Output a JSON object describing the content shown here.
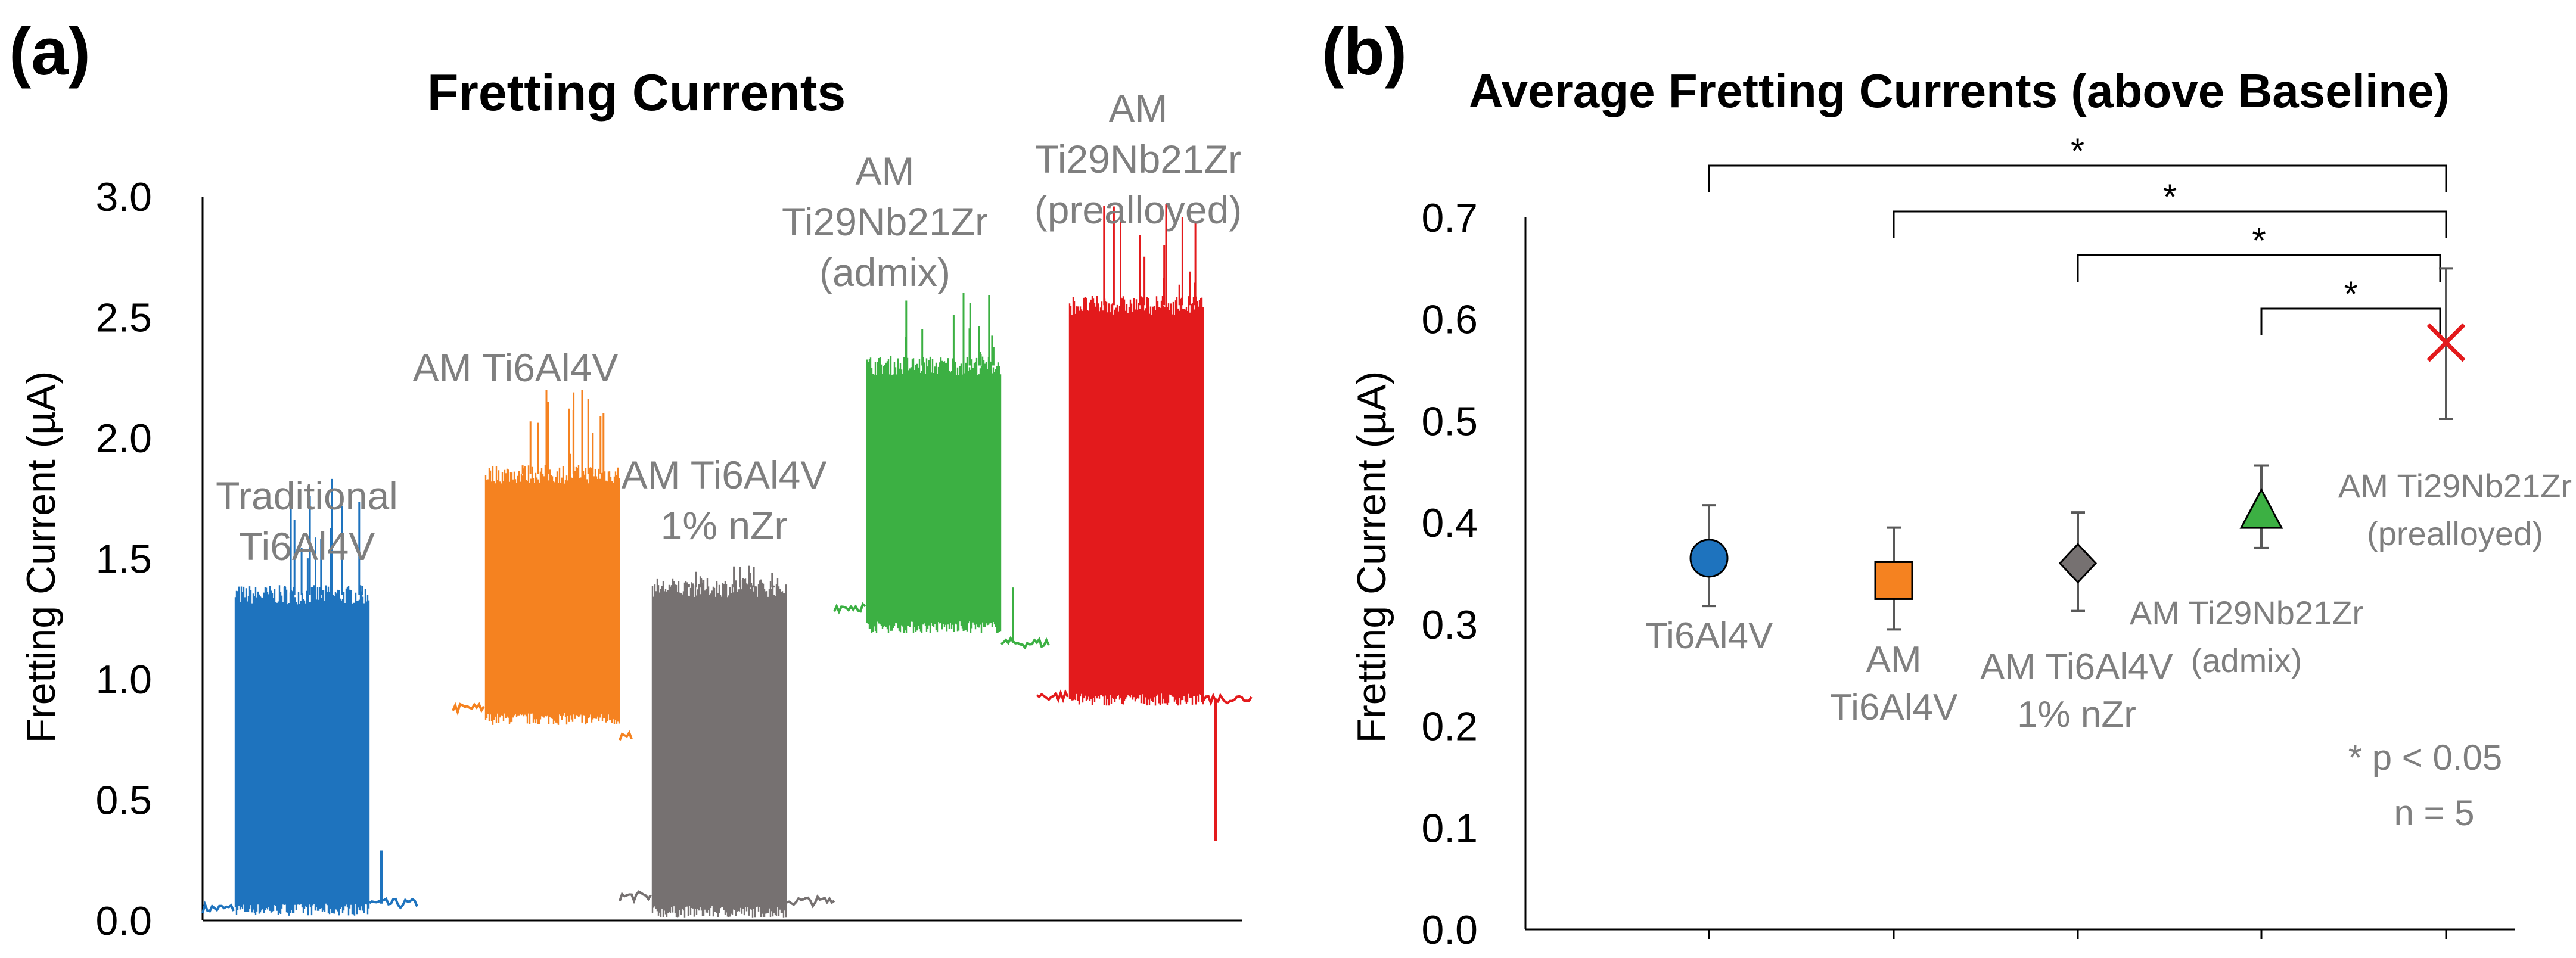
{
  "panels": {
    "a": {
      "label": "(a)"
    },
    "b": {
      "label": "(b)"
    }
  },
  "colors": {
    "traditional": "#1e73be",
    "am_ti6al4v": "#f58220",
    "nzr": "#767171",
    "admix": "#3cb043",
    "prealloyed": "#e31a1c",
    "label_gray": "#7f7f7f",
    "axis": "#000000"
  },
  "chart_data": [
    {
      "type": "line",
      "title": "Fretting Currents",
      "xlabel": "",
      "ylabel": "Fretting Current (µA)",
      "ylim": [
        0,
        3.0
      ],
      "yticks": [
        "0.0",
        "0.5",
        "1.0",
        "1.5",
        "2.0",
        "2.5",
        "3.0"
      ],
      "grid": false,
      "series": [
        {
          "name": "Traditional Ti6Al4V",
          "label_lines": [
            "Traditional",
            "Ti6Al4V"
          ],
          "color_key": "traditional",
          "start": 0,
          "span": 360,
          "base_before": 0.05,
          "base_after": 0.07,
          "peak": 1.35,
          "low": 0.03,
          "spike_max": 1.83,
          "spike2": 0.29
        },
        {
          "name": "AM Ti6Al4V",
          "label_lines": [
            "AM Ti6Al4V"
          ],
          "color_key": "am_ti6al4v",
          "start": 420,
          "span": 300,
          "base_before": 0.88,
          "base_after": 0.76,
          "peak": 1.85,
          "low": 0.82,
          "spike_max": 2.2,
          "spike2": 0
        },
        {
          "name": "AM Ti6Al4V 1% nZr",
          "label_lines": [
            "AM Ti6Al4V",
            "1% nZr"
          ],
          "color_key": "nzr",
          "start": 700,
          "span": 360,
          "base_before": 0.1,
          "base_after": 0.08,
          "peak": 1.38,
          "low": 0.02,
          "spike_max": 1.47,
          "spike2": 0
        },
        {
          "name": "AM Ti29Nb21Zr (admix)",
          "label_lines": [
            "AM",
            "Ti29Nb21Zr",
            "(admix)"
          ],
          "color_key": "admix",
          "start": 1060,
          "span": 360,
          "base_before": 1.3,
          "base_after": 1.15,
          "peak": 2.3,
          "low": 1.2,
          "spike_max": 2.6,
          "spike2": 1.38
        },
        {
          "name": "AM Ti29Nb21Zr (prealloyed)",
          "label_lines": [
            "AM",
            "Ti29Nb21Zr",
            "(prealloyed)"
          ],
          "color_key": "prealloyed",
          "start": 1400,
          "span": 360,
          "base_before": 0.93,
          "base_after": 0.92,
          "peak": 2.55,
          "low": 0.9,
          "spike_max": 2.97,
          "spike2": 0.33
        }
      ]
    },
    {
      "type": "scatter",
      "title": "Average Fretting Currents (above Baseline)",
      "xlabel": "",
      "ylabel": "Fretting Current (µA)",
      "ylim": [
        0,
        0.7
      ],
      "yticks": [
        "0.0",
        "0.1",
        "0.2",
        "0.3",
        "0.4",
        "0.5",
        "0.6",
        "0.7"
      ],
      "grid": false,
      "points": [
        {
          "name": "Ti6Al4V",
          "label_lines": [
            "Ti6Al4V"
          ],
          "marker": "circle",
          "color_key": "traditional",
          "value": 0.365,
          "err_low": 0.318,
          "err_high": 0.417
        },
        {
          "name": "AM Ti6Al4V",
          "label_lines": [
            "AM",
            "Ti6Al4V"
          ],
          "marker": "square",
          "color_key": "am_ti6al4v",
          "value": 0.343,
          "err_low": 0.295,
          "err_high": 0.395
        },
        {
          "name": "AM Ti6Al4V 1% nZr",
          "label_lines": [
            "AM Ti6Al4V",
            "1% nZr"
          ],
          "marker": "diamond",
          "color_key": "nzr",
          "value": 0.36,
          "err_low": 0.313,
          "err_high": 0.41
        },
        {
          "name": "AM Ti29Nb21Zr (admix)",
          "label_lines": [
            "AM Ti29Nb21Zr",
            "(admix)"
          ],
          "marker": "triangle",
          "color_key": "admix",
          "value": 0.41,
          "err_low": 0.375,
          "err_high": 0.456
        },
        {
          "name": "AM Ti29Nb21Zr (prealloyed)",
          "label_lines": [
            "AM Ti29Nb21Zr",
            "(prealloyed)"
          ],
          "marker": "x",
          "color_key": "prealloyed",
          "value": 0.577,
          "err_low": 0.502,
          "err_high": 0.65
        }
      ],
      "significance": [
        {
          "from": 0,
          "to": 4,
          "label": "*"
        },
        {
          "from": 1,
          "to": 4,
          "label": "*"
        },
        {
          "from": 2,
          "to": 4,
          "label": "*"
        },
        {
          "from": 3,
          "to": 4,
          "label": "*"
        }
      ],
      "annotations": [
        "* p < 0.05",
        "n = 5"
      ]
    }
  ]
}
